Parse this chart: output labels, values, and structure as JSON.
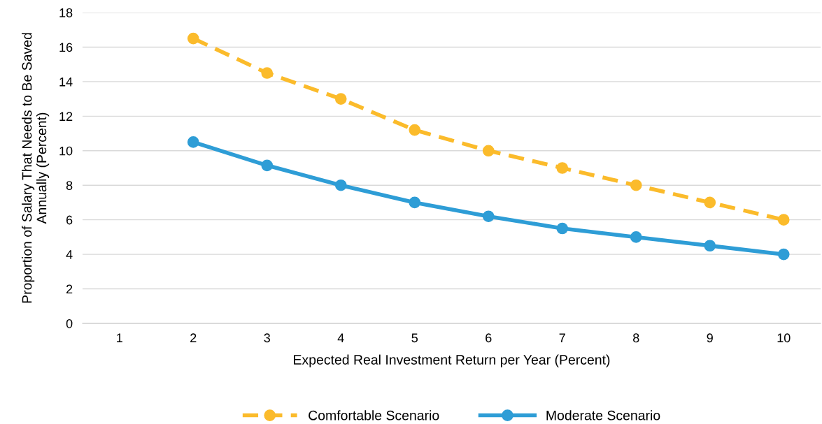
{
  "chart_data": {
    "type": "line",
    "xlabel": "Expected Real Investment Return per Year (Percent)",
    "ylabel": "Proportion of Salary That Needs to Be Saved\nAnnually (Percent)",
    "categories": [
      "1",
      "2",
      "3",
      "4",
      "5",
      "6",
      "7",
      "8",
      "9",
      "10"
    ],
    "series": [
      {
        "name": "Comfortable Scenario",
        "color": "#fbbb2b",
        "line_style": "dashed",
        "values": [
          null,
          16.5,
          14.5,
          13,
          11.2,
          10,
          9,
          8,
          7,
          6
        ]
      },
      {
        "name": "Moderate Scenario",
        "color": "#2e9dd6",
        "line_style": "solid",
        "values": [
          null,
          10.5,
          9.15,
          8,
          7,
          6.2,
          5.5,
          5,
          4.5,
          4
        ]
      }
    ],
    "ylim": [
      0,
      18
    ],
    "yticks": [
      0,
      2,
      4,
      6,
      8,
      10,
      12,
      14,
      16,
      18
    ],
    "grid": "y",
    "legend": "bottom",
    "marker": "circle"
  }
}
